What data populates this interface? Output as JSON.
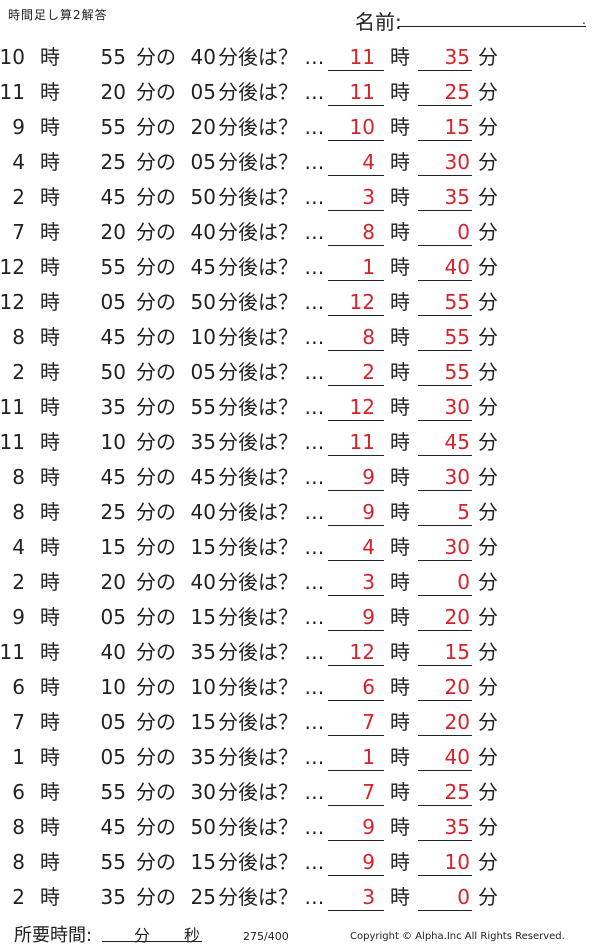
{
  "header": {
    "title": "時間足し算2解答",
    "name_label": "名前:"
  },
  "labels": {
    "hour": "時",
    "min": "分",
    "no": "の",
    "after": "分後は？ …"
  },
  "rows": [
    {
      "h": "10",
      "m1": "55",
      "m2": "40",
      "ah": "11",
      "am": "35"
    },
    {
      "h": "11",
      "m1": "20",
      "m2": "05",
      "ah": "11",
      "am": "25"
    },
    {
      "h": "9",
      "m1": "55",
      "m2": "20",
      "ah": "10",
      "am": "15"
    },
    {
      "h": "4",
      "m1": "25",
      "m2": "05",
      "ah": "4",
      "am": "30"
    },
    {
      "h": "2",
      "m1": "45",
      "m2": "50",
      "ah": "3",
      "am": "35"
    },
    {
      "h": "7",
      "m1": "20",
      "m2": "40",
      "ah": "8",
      "am": "0"
    },
    {
      "h": "12",
      "m1": "55",
      "m2": "45",
      "ah": "1",
      "am": "40"
    },
    {
      "h": "12",
      "m1": "05",
      "m2": "50",
      "ah": "12",
      "am": "55"
    },
    {
      "h": "8",
      "m1": "45",
      "m2": "10",
      "ah": "8",
      "am": "55"
    },
    {
      "h": "2",
      "m1": "50",
      "m2": "05",
      "ah": "2",
      "am": "55"
    },
    {
      "h": "11",
      "m1": "35",
      "m2": "55",
      "ah": "12",
      "am": "30"
    },
    {
      "h": "11",
      "m1": "10",
      "m2": "35",
      "ah": "11",
      "am": "45"
    },
    {
      "h": "8",
      "m1": "45",
      "m2": "45",
      "ah": "9",
      "am": "30"
    },
    {
      "h": "8",
      "m1": "25",
      "m2": "40",
      "ah": "9",
      "am": "5"
    },
    {
      "h": "4",
      "m1": "15",
      "m2": "15",
      "ah": "4",
      "am": "30"
    },
    {
      "h": "2",
      "m1": "20",
      "m2": "40",
      "ah": "3",
      "am": "0"
    },
    {
      "h": "9",
      "m1": "05",
      "m2": "15",
      "ah": "9",
      "am": "20"
    },
    {
      "h": "11",
      "m1": "40",
      "m2": "35",
      "ah": "12",
      "am": "15"
    },
    {
      "h": "6",
      "m1": "10",
      "m2": "10",
      "ah": "6",
      "am": "20"
    },
    {
      "h": "7",
      "m1": "05",
      "m2": "15",
      "ah": "7",
      "am": "20"
    },
    {
      "h": "1",
      "m1": "05",
      "m2": "35",
      "ah": "1",
      "am": "40"
    },
    {
      "h": "6",
      "m1": "55",
      "m2": "30",
      "ah": "7",
      "am": "25"
    },
    {
      "h": "8",
      "m1": "45",
      "m2": "50",
      "ah": "9",
      "am": "35"
    },
    {
      "h": "8",
      "m1": "55",
      "m2": "15",
      "ah": "9",
      "am": "10"
    },
    {
      "h": "2",
      "m1": "35",
      "m2": "25",
      "ah": "3",
      "am": "0"
    }
  ],
  "footer": {
    "time_label": "所要時間:",
    "min_label": "分",
    "sec_label": "秒",
    "page": "275/400",
    "copyright": "Copyright © Alpha.Inc All Rights Reserved."
  }
}
